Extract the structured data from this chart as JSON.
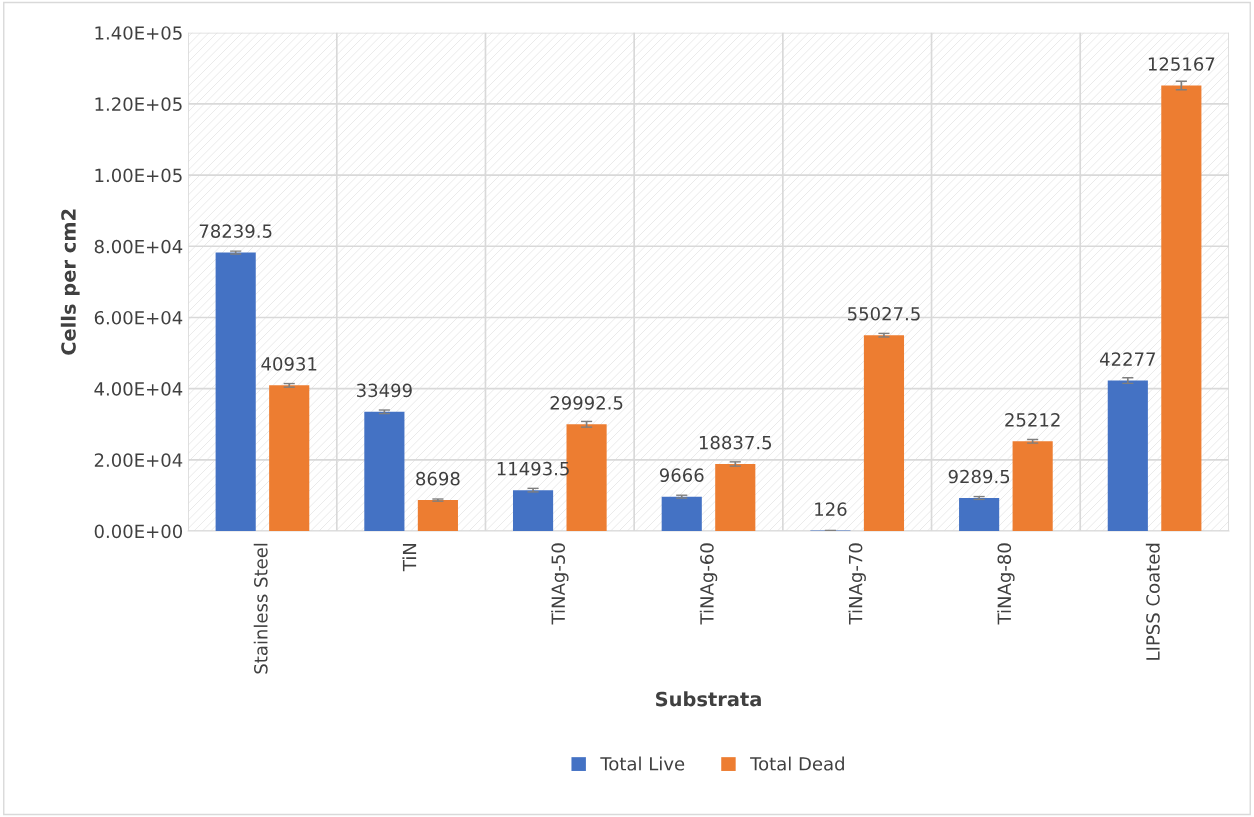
{
  "chart_data": {
    "type": "bar",
    "xlabel": "Substrata",
    "ylabel": "Cells per cm2",
    "categories": [
      "Stainless Steel",
      "TiN",
      "TiNAg-50",
      "TiNAg-60",
      "TiNAg-70",
      "TiNAg-80",
      "LIPSS Coated"
    ],
    "series": [
      {
        "name": "Total Live",
        "color": "#4472c4",
        "values": [
          78239.5,
          33499,
          11493.5,
          9666,
          126,
          9289.5,
          42277
        ],
        "errors": [
          400,
          500,
          500,
          400,
          50,
          400,
          800
        ]
      },
      {
        "name": "Total Dead",
        "color": "#ed7d31",
        "values": [
          40931,
          8698,
          29992.5,
          18837.5,
          55027.5,
          25212,
          125167
        ],
        "errors": [
          500,
          300,
          800,
          600,
          500,
          500,
          1200
        ]
      }
    ],
    "ylim": [
      0,
      140000
    ],
    "yticks": [
      {
        "value": 0,
        "label": "0.00E+00"
      },
      {
        "value": 20000,
        "label": "2.00E+04"
      },
      {
        "value": 40000,
        "label": "4.00E+04"
      },
      {
        "value": 60000,
        "label": "6.00E+04"
      },
      {
        "value": 80000,
        "label": "8.00E+04"
      },
      {
        "value": 100000,
        "label": "1.00E+05"
      },
      {
        "value": 120000,
        "label": "1.20E+05"
      },
      {
        "value": 140000,
        "label": "1.40E+05"
      }
    ],
    "data_labels": true,
    "grid": true,
    "legend": "bottom"
  }
}
